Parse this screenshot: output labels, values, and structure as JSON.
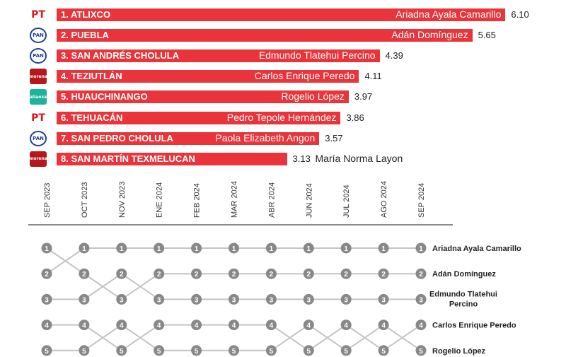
{
  "chart_data": [
    {
      "type": "bar",
      "title": "",
      "rows": [
        {
          "rank_label": "1. ATLIXCO",
          "candidate": "Ariadna Ayala Camarillo",
          "value": 6.1,
          "value_label": "6.10",
          "party": "PT"
        },
        {
          "rank_label": "2. PUEBLA",
          "candidate": "Adán Domínguez",
          "value": 5.65,
          "value_label": "5.65",
          "party": "PAN"
        },
        {
          "rank_label": "3. SAN ANDRÉS CHOLULA",
          "candidate": "Edmundo Tlatehui Percino",
          "value": 4.39,
          "value_label": "4.39",
          "party": "PAN"
        },
        {
          "rank_label": "4. TEZIUTLÁN",
          "candidate": "Carlos Enrique Peredo",
          "value": 4.11,
          "value_label": "4.11",
          "party": "morena"
        },
        {
          "rank_label": "5. HUAUCHINANGO",
          "candidate": "Rogelio López",
          "value": 3.97,
          "value_label": "3.97",
          "party": "alianza"
        },
        {
          "rank_label": "6. TEHUACÁN",
          "candidate": "Pedro Tepole Hernández",
          "value": 3.86,
          "value_label": "3.86",
          "party": "PT"
        },
        {
          "rank_label": "7. SAN PEDRO CHOLULA",
          "candidate": "Paola Elizabeth Angon",
          "value": 3.57,
          "value_label": "3.57",
          "party": "PAN"
        },
        {
          "rank_label": "8. SAN MARTÍN TEXMELUCAN",
          "candidate": "María Norma Layon",
          "value": 3.13,
          "value_label": "3.13",
          "party": "morena"
        }
      ],
      "colors": {
        "bar": "#e8343a"
      }
    },
    {
      "type": "line",
      "chart_kind": "bump",
      "x": [
        "SEP 2023",
        "OCT 2023",
        "NOV 2023",
        "ENE 2024",
        "FEB 2024",
        "MAR 2024",
        "ABR 2024",
        "JUN 2024",
        "JUL 2024",
        "AGO 2024",
        "SEP 2024"
      ],
      "series": [
        {
          "name": "Ariadna Ayala Camarillo",
          "ranks": [
            2,
            1,
            1,
            1,
            1,
            1,
            1,
            1,
            1,
            1,
            1
          ]
        },
        {
          "name": "Adán Domínguez",
          "ranks": [
            1,
            2,
            3,
            2,
            2,
            2,
            2,
            2,
            2,
            2,
            2
          ]
        },
        {
          "name": "Edmundo Tlatehui Percino",
          "ranks": [
            3,
            3,
            2,
            3,
            3,
            3,
            3,
            3,
            3,
            3,
            3
          ]
        },
        {
          "name": "Carlos Enrique Peredo",
          "ranks": [
            4,
            4,
            5,
            4,
            4,
            4,
            4,
            5,
            4,
            5,
            4
          ]
        },
        {
          "name": "Rogelio López",
          "ranks": [
            5,
            5,
            4,
            5,
            5,
            5,
            5,
            4,
            5,
            4,
            5
          ]
        }
      ],
      "visible_right_labels": [
        "Ariadna Ayala Camarillo",
        "Adán Domínguez",
        "Edmundo Tlatehui Percino",
        "Carlos Enrique Peredo",
        "Rogelio López"
      ],
      "colors": {
        "line": "#c4c4c4",
        "node": "#888888",
        "node_text": "#ffffff"
      }
    }
  ]
}
